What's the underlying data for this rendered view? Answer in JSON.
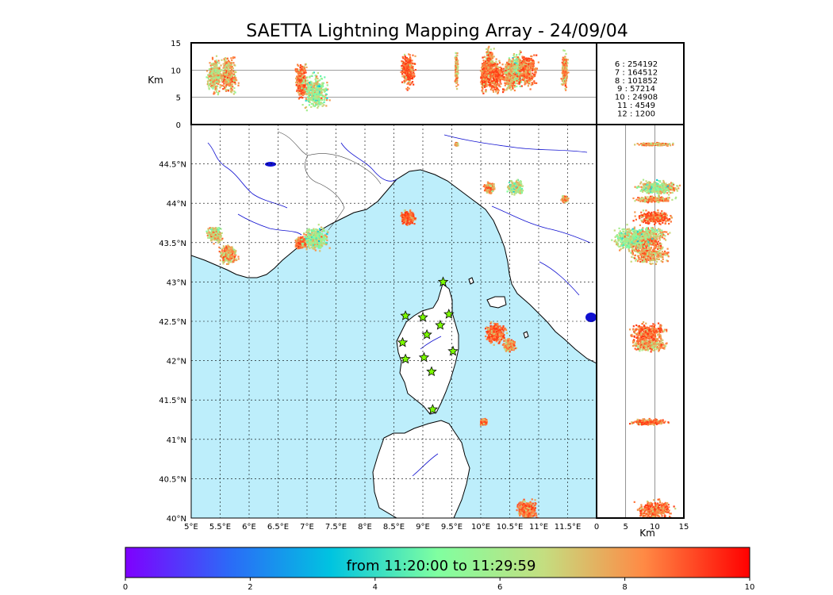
{
  "chart_data": {
    "type": "scatter",
    "title": "SAETTA Lightning Mapping Array - 24/09/04",
    "map": {
      "lon_range": [
        5,
        12
      ],
      "lat_range": [
        40,
        45
      ],
      "lon_ticks": [
        "5°E",
        "5.5°E",
        "6°E",
        "6.5°E",
        "7°E",
        "7.5°E",
        "8°E",
        "8.5°E",
        "9°E",
        "9.5°E",
        "10°E",
        "10.5°E",
        "11°E",
        "11.5°E"
      ],
      "lat_ticks": [
        "40°N",
        "40.5°N",
        "41°N",
        "41.5°N",
        "42°N",
        "42.5°N",
        "43°N",
        "43.5°N",
        "44°N",
        "44.5°N"
      ],
      "grid": "dotted",
      "sea_color": "#bdeefb",
      "land_color": "#ffffff"
    },
    "altitude_axis": {
      "label": "Km",
      "range": [
        0,
        15
      ],
      "ticks": [
        "0",
        "5",
        "10",
        "15"
      ]
    },
    "legend_counts": [
      {
        "label": "6  :   254192",
        "color": "#000000"
      },
      {
        "label": "7  :   164512",
        "color": "#e00000"
      },
      {
        "label": "8  :   101852",
        "color": "#000000"
      },
      {
        "label": "9  :    57214",
        "color": "#000000"
      },
      {
        "label": "10 :    24908",
        "color": "#000000"
      },
      {
        "label": "11 :     4549",
        "color": "#000000"
      },
      {
        "label": "12 :     1200",
        "color": "#000000"
      }
    ],
    "colorbar": {
      "label": "from 11:20:00 to 11:29:59",
      "range": [
        0,
        10
      ],
      "ticks": [
        "0",
        "2",
        "4",
        "6",
        "8",
        "10"
      ],
      "colormap": "rainbow"
    },
    "stations": [
      {
        "lon": 9.35,
        "lat": 43.0
      },
      {
        "lon": 8.7,
        "lat": 42.57
      },
      {
        "lon": 9.0,
        "lat": 42.55
      },
      {
        "lon": 9.45,
        "lat": 42.59
      },
      {
        "lon": 9.3,
        "lat": 42.45
      },
      {
        "lon": 9.07,
        "lat": 42.33
      },
      {
        "lon": 8.65,
        "lat": 42.23
      },
      {
        "lon": 9.52,
        "lat": 42.12
      },
      {
        "lon": 8.7,
        "lat": 42.02
      },
      {
        "lon": 9.02,
        "lat": 42.04
      },
      {
        "lon": 9.15,
        "lat": 41.86
      },
      {
        "lon": 9.17,
        "lat": 41.38
      }
    ],
    "lightning_clusters": [
      {
        "lon": 5.4,
        "lat": 43.6,
        "spread": 0.15,
        "alt": 9,
        "time": 7
      },
      {
        "lon": 5.65,
        "lat": 43.35,
        "spread": 0.18,
        "alt": 9,
        "time": 8
      },
      {
        "lon": 6.9,
        "lat": 43.5,
        "spread": 0.12,
        "alt": 8,
        "time": 9
      },
      {
        "lon": 7.15,
        "lat": 43.55,
        "spread": 0.25,
        "alt": 6,
        "time": 6
      },
      {
        "lon": 8.75,
        "lat": 43.82,
        "spread": 0.14,
        "alt": 10,
        "time": 9
      },
      {
        "lon": 9.58,
        "lat": 44.75,
        "spread": 0.03,
        "alt": 10,
        "time": 8
      },
      {
        "lon": 10.15,
        "lat": 44.2,
        "spread": 0.1,
        "alt": 11,
        "time": 8
      },
      {
        "lon": 10.6,
        "lat": 44.2,
        "spread": 0.15,
        "alt": 10,
        "time": 6
      },
      {
        "lon": 11.45,
        "lat": 44.05,
        "spread": 0.06,
        "alt": 10,
        "time": 8
      },
      {
        "lon": 10.25,
        "lat": 42.35,
        "spread": 0.2,
        "alt": 9,
        "time": 9
      },
      {
        "lon": 10.5,
        "lat": 42.2,
        "spread": 0.12,
        "alt": 9,
        "time": 8
      },
      {
        "lon": 10.05,
        "lat": 41.22,
        "spread": 0.06,
        "alt": 9,
        "time": 9
      },
      {
        "lon": 10.8,
        "lat": 40.1,
        "spread": 0.2,
        "alt": 10,
        "time": 9
      }
    ]
  }
}
